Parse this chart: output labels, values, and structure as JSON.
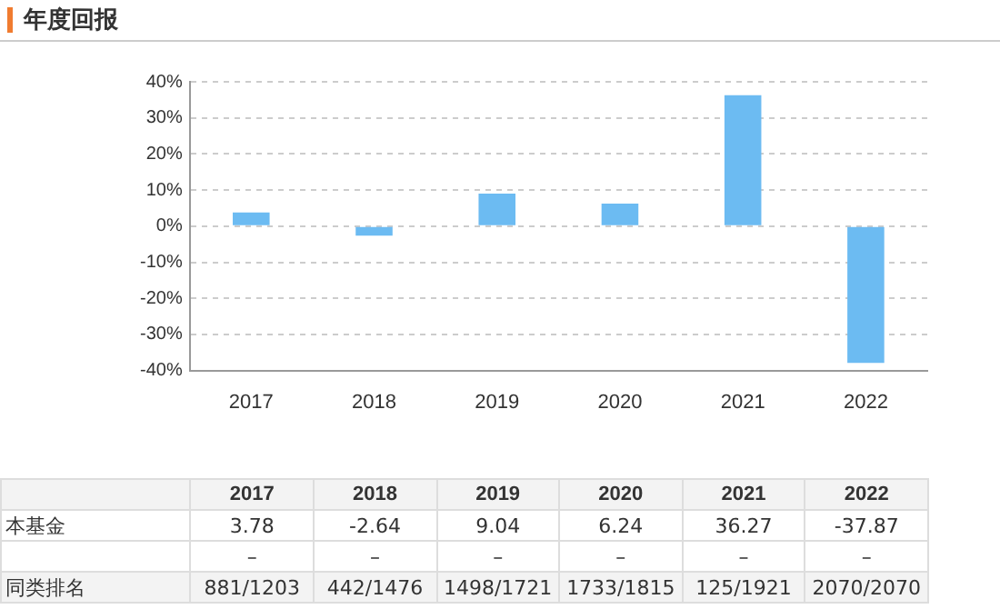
{
  "chart_data": {
    "type": "bar",
    "title": "年度回报",
    "categories": [
      "2017",
      "2018",
      "2019",
      "2020",
      "2021",
      "2022"
    ],
    "values": [
      3.78,
      -2.64,
      9.04,
      6.24,
      36.27,
      -37.87
    ],
    "color": "#6cbbf2",
    "ylim": [
      -40,
      40
    ],
    "yticks": [
      {
        "value": -40,
        "label": "-40%"
      },
      {
        "value": -30,
        "label": "-30%"
      },
      {
        "value": -20,
        "label": "-20%"
      },
      {
        "value": -10,
        "label": "-10%"
      },
      {
        "value": 0,
        "label": "0%"
      },
      {
        "value": 10,
        "label": "10%"
      },
      {
        "value": 20,
        "label": "20%"
      },
      {
        "value": 30,
        "label": "30%"
      },
      {
        "value": 40,
        "label": "40%"
      }
    ],
    "grid": "y",
    "value_labels": [
      "3.78",
      "-2.64",
      "9.04",
      "6.24",
      "36.27",
      "-37.87"
    ],
    "annotations": [
      "本基金",
      "–",
      "同类排名",
      "881/1203",
      "442/1476",
      "1498/1721",
      "1733/1815",
      "125/1921",
      "2070/2070"
    ]
  }
}
